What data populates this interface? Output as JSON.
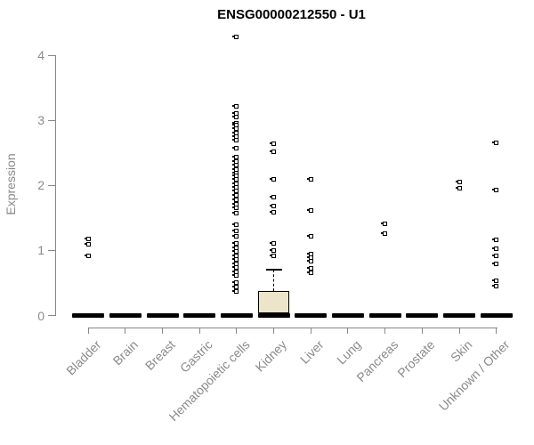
{
  "chart_data": {
    "type": "boxplot",
    "title": "ENSG00000212550 - U1",
    "ylabel": "Expression",
    "xlabel": "",
    "ylim": [
      0,
      4.3
    ],
    "yticks": [
      0,
      1,
      2,
      3,
      4
    ],
    "grid": false,
    "legend": false,
    "colors": {
      "axis": "#878787",
      "labels": "#8a8a8a",
      "title": "#000000",
      "points": "#000000",
      "box_fill": "#ece5c9"
    },
    "categories": [
      "Bladder",
      "Brain",
      "Breast",
      "Gastric",
      "Hematopoietic cells",
      "Kidney",
      "Liver",
      "Lung",
      "Pancreas",
      "Prostate",
      "Skin",
      "Unknown / Other"
    ],
    "series": [
      {
        "category": "Bladder",
        "median": 0,
        "q1": 0,
        "q3": 0,
        "points": [
          1.17,
          1.1,
          0.91
        ]
      },
      {
        "category": "Brain",
        "median": 0,
        "q1": 0,
        "q3": 0,
        "points": []
      },
      {
        "category": "Breast",
        "median": 0,
        "q1": 0,
        "q3": 0,
        "points": []
      },
      {
        "category": "Gastric",
        "median": 0,
        "q1": 0,
        "q3": 0,
        "points": []
      },
      {
        "category": "Hematopoietic cells",
        "median": 0,
        "q1": 0,
        "q3": 0,
        "points": [
          4.28,
          3.22,
          3.1,
          3.05,
          2.96,
          2.93,
          2.87,
          2.81,
          2.75,
          2.7,
          2.57,
          2.43,
          2.37,
          2.31,
          2.25,
          2.19,
          2.15,
          2.09,
          2.03,
          1.97,
          1.91,
          1.85,
          1.78,
          1.71,
          1.65,
          1.57,
          1.39,
          1.3,
          1.22,
          1.11,
          1.04,
          0.98,
          0.92,
          0.86,
          0.79,
          0.74,
          0.67,
          0.61,
          0.51,
          0.44,
          0.37
        ]
      },
      {
        "category": "Kidney",
        "median": 0,
        "q1": 0.03,
        "q3": 0.37,
        "upper_whisker": 0.7,
        "points": [
          2.64,
          2.52,
          2.09,
          1.82,
          1.68,
          1.59,
          1.11,
          1.0,
          0.91
        ]
      },
      {
        "category": "Liver",
        "median": 0,
        "q1": 0,
        "q3": 0,
        "points": [
          2.09,
          1.61,
          1.22,
          0.95,
          0.89,
          0.84,
          0.72,
          0.66
        ]
      },
      {
        "category": "Lung",
        "median": 0,
        "q1": 0,
        "q3": 0,
        "points": []
      },
      {
        "category": "Pancreas",
        "median": 0,
        "q1": 0,
        "q3": 0,
        "points": [
          1.41,
          1.26
        ]
      },
      {
        "category": "Prostate",
        "median": 0,
        "q1": 0,
        "q3": 0,
        "points": []
      },
      {
        "category": "Skin",
        "median": 0,
        "q1": 0,
        "q3": 0,
        "points": [
          2.05,
          1.96
        ]
      },
      {
        "category": "Unknown / Other",
        "median": 0,
        "q1": 0,
        "q3": 0,
        "points": [
          2.65,
          1.93,
          1.16,
          1.02,
          0.91,
          0.8,
          0.54,
          0.45
        ]
      }
    ]
  }
}
